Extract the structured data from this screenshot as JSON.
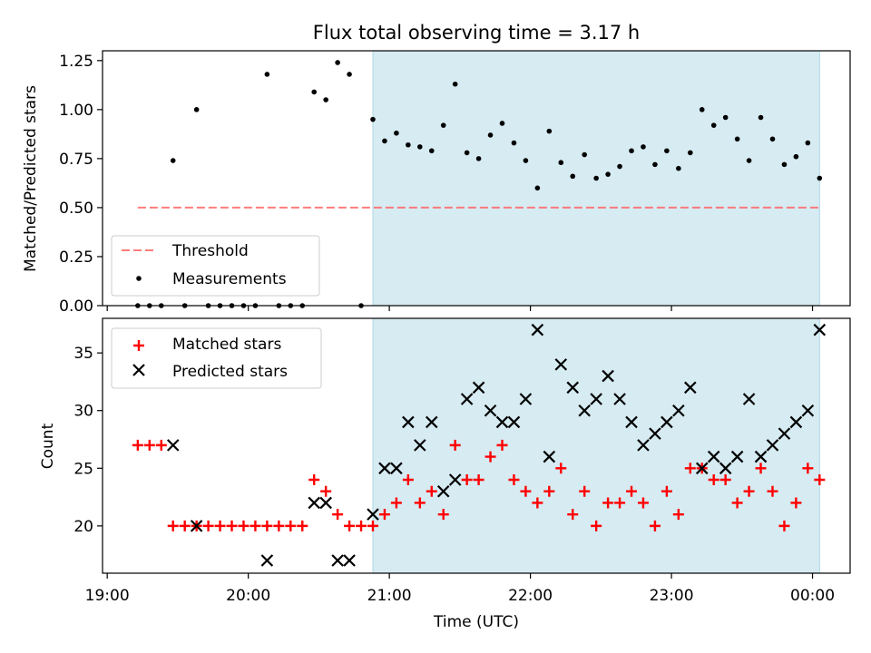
{
  "chart_data": [
    {
      "type": "scatter",
      "title": "Flux total observing time = 3.17 h",
      "xlabel": "",
      "ylabel": "Matched/Predicted stars",
      "xlim": [
        "18:58",
        "00:16"
      ],
      "ylim": [
        0,
        1.3
      ],
      "grid": false,
      "legend": "lower-left",
      "yticks": [
        "0.00",
        "0.25",
        "0.50",
        "0.75",
        "1.00",
        "1.25"
      ],
      "shaded_region": {
        "start": "20:53",
        "end": "00:03",
        "color": "#add8e6"
      },
      "threshold": {
        "name": "Threshold",
        "value": 0.5,
        "start": "19:13",
        "end": "00:03",
        "color": "#ff6666"
      },
      "series": [
        {
          "name": "Measurements",
          "color": "#000000",
          "x": [
            "19:13",
            "19:18",
            "19:23",
            "19:28",
            "19:33",
            "19:38",
            "19:43",
            "19:48",
            "19:53",
            "19:58",
            "20:03",
            "20:08",
            "20:13",
            "20:18",
            "20:23",
            "20:28",
            "20:33",
            "20:38",
            "20:43",
            "20:48",
            "20:53",
            "20:58",
            "21:03",
            "21:08",
            "21:13",
            "21:18",
            "21:23",
            "21:28",
            "21:33",
            "21:38",
            "21:43",
            "21:48",
            "21:53",
            "21:58",
            "22:03",
            "22:08",
            "22:13",
            "22:18",
            "22:23",
            "22:28",
            "22:33",
            "22:38",
            "22:43",
            "22:48",
            "22:53",
            "22:58",
            "23:03",
            "23:08",
            "23:13",
            "23:18",
            "23:23",
            "23:28",
            "23:33",
            "23:38",
            "23:43",
            "23:48",
            "23:53",
            "23:58",
            "00:03"
          ],
          "y": [
            0.0,
            0.0,
            0.0,
            0.74,
            0.0,
            1.0,
            0.0,
            0.0,
            0.0,
            0.0,
            0.0,
            1.18,
            0.0,
            0.0,
            0.0,
            1.09,
            1.05,
            1.24,
            1.18,
            0.0,
            0.95,
            0.84,
            0.88,
            0.82,
            0.81,
            0.79,
            0.92,
            1.13,
            0.78,
            0.75,
            0.87,
            0.93,
            0.83,
            0.74,
            0.6,
            0.89,
            0.73,
            0.66,
            0.77,
            0.65,
            0.67,
            0.71,
            0.79,
            0.81,
            0.72,
            0.79,
            0.7,
            0.78,
            1.0,
            0.92,
            0.96,
            0.85,
            0.74,
            0.96,
            0.85,
            0.72,
            0.76,
            0.83,
            0.65
          ]
        }
      ]
    },
    {
      "type": "scatter",
      "title": "",
      "xlabel": "Time (UTC)",
      "ylabel": "Count",
      "xlim": [
        "18:58",
        "00:16"
      ],
      "ylim": [
        15.9,
        38.0
      ],
      "grid": false,
      "legend": "upper-left",
      "xticks": [
        "19:00",
        "20:00",
        "21:00",
        "22:00",
        "23:00",
        "00:00"
      ],
      "yticks": [
        "20",
        "25",
        "30",
        "35"
      ],
      "shaded_region": {
        "start": "20:53",
        "end": "00:03",
        "color": "#add8e6"
      },
      "series": [
        {
          "name": "Matched stars",
          "marker": "+",
          "color": "#ff0000",
          "x": [
            "19:13",
            "19:18",
            "19:23",
            "19:28",
            "19:33",
            "19:38",
            "19:43",
            "19:48",
            "19:53",
            "19:58",
            "20:03",
            "20:08",
            "20:13",
            "20:18",
            "20:23",
            "20:28",
            "20:33",
            "20:38",
            "20:43",
            "20:48",
            "20:53",
            "20:58",
            "21:03",
            "21:08",
            "21:13",
            "21:18",
            "21:23",
            "21:28",
            "21:33",
            "21:38",
            "21:43",
            "21:48",
            "21:53",
            "21:58",
            "22:03",
            "22:08",
            "22:13",
            "22:18",
            "22:23",
            "22:28",
            "22:33",
            "22:38",
            "22:43",
            "22:48",
            "22:53",
            "22:58",
            "23:03",
            "23:08",
            "23:13",
            "23:18",
            "23:23",
            "23:28",
            "23:33",
            "23:38",
            "23:43",
            "23:48",
            "23:53",
            "23:58",
            "00:03"
          ],
          "y": [
            27,
            27,
            27,
            20,
            20,
            20,
            20,
            20,
            20,
            20,
            20,
            20,
            20,
            20,
            20,
            24,
            23,
            21,
            20,
            20,
            20,
            21,
            22,
            24,
            22,
            23,
            21,
            27,
            24,
            24,
            26,
            27,
            24,
            23,
            22,
            23,
            25,
            21,
            23,
            20,
            22,
            22,
            23,
            22,
            20,
            23,
            21,
            25,
            25,
            24,
            24,
            22,
            23,
            25,
            23,
            20,
            22,
            25,
            24
          ]
        },
        {
          "name": "Predicted stars",
          "marker": "x",
          "color": "#000000",
          "x": [
            "19:28",
            "19:38",
            "20:08",
            "20:28",
            "20:33",
            "20:38",
            "20:43",
            "20:53",
            "20:58",
            "21:03",
            "21:08",
            "21:13",
            "21:18",
            "21:23",
            "21:28",
            "21:33",
            "21:38",
            "21:43",
            "21:48",
            "21:53",
            "21:58",
            "22:03",
            "22:08",
            "22:13",
            "22:18",
            "22:23",
            "22:28",
            "22:33",
            "22:38",
            "22:43",
            "22:48",
            "22:53",
            "22:58",
            "23:03",
            "23:08",
            "23:13",
            "23:18",
            "23:23",
            "23:28",
            "23:33",
            "23:38",
            "23:43",
            "23:48",
            "23:53",
            "23:58",
            "00:03"
          ],
          "y": [
            27,
            20,
            17,
            22,
            22,
            17,
            17,
            21,
            25,
            25,
            29,
            27,
            29,
            23,
            24,
            31,
            32,
            30,
            29,
            29,
            31,
            37,
            26,
            34,
            32,
            30,
            31,
            33,
            31,
            29,
            27,
            28,
            29,
            30,
            32,
            25,
            26,
            25,
            26,
            31,
            26,
            27,
            28,
            29,
            30,
            37
          ]
        }
      ]
    }
  ]
}
